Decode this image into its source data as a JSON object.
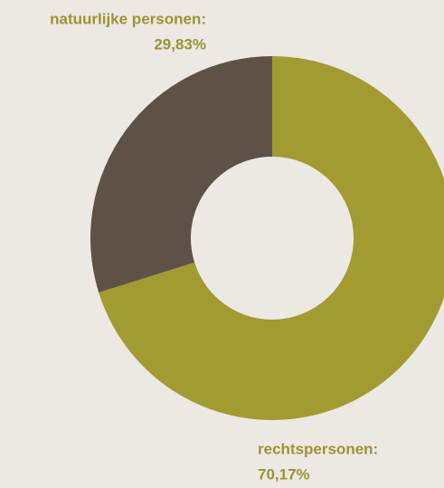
{
  "chart_data": {
    "type": "donut",
    "categories": [
      "rechtspersonen:",
      "natuurlijke personen:"
    ],
    "values": [
      70.17,
      29.83
    ],
    "value_labels": [
      "70,17%",
      "29,83%"
    ],
    "colors": [
      "#a39a32",
      "#5e5247"
    ],
    "label_color": "#9d9331"
  }
}
